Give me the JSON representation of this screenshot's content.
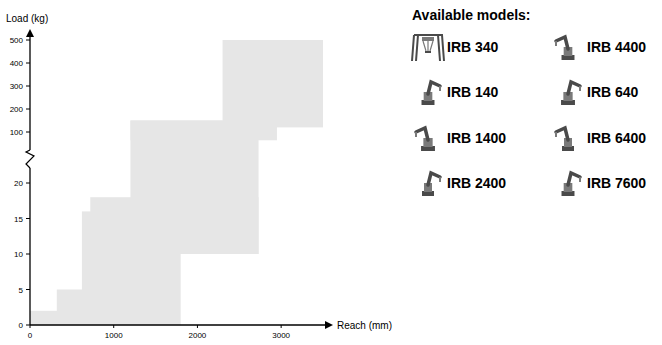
{
  "chart_data": {
    "type": "range",
    "x_label": "Reach (mm)",
    "y_label": "Load (kg)",
    "color": "#e6e6e6",
    "xlim": [
      0,
      3500
    ],
    "xticks": [
      0,
      1000,
      2000,
      3000
    ],
    "ylim": [
      0,
      500
    ],
    "yticks": [
      0,
      5,
      10,
      15,
      20,
      100,
      200,
      300,
      400,
      500
    ],
    "y_break": [
      20,
      100
    ],
    "grid": false,
    "regions": [
      {
        "reach": [
          0,
          1440
        ],
        "load": [
          0,
          2
        ]
      },
      {
        "reach": [
          320,
          1440
        ],
        "load": [
          0,
          5
        ]
      },
      {
        "reach": [
          620,
          1800
        ],
        "load": [
          0,
          16
        ]
      },
      {
        "reach": [
          720,
          2730
        ],
        "load": [
          10,
          18
        ]
      },
      {
        "reach": [
          1200,
          2730
        ],
        "load": [
          10,
          150
        ]
      },
      {
        "reach": [
          1200,
          2950
        ],
        "load": [
          87,
          150
        ]
      },
      {
        "reach": [
          2300,
          3500
        ],
        "load": [
          120,
          500
        ]
      }
    ]
  },
  "panel": {
    "title": "Available models:",
    "models": [
      "IRB 340",
      "IRB 140",
      "IRB 1400",
      "IRB 2400",
      "IRB 4400",
      "IRB 640",
      "IRB 6400",
      "IRB 7600"
    ]
  }
}
